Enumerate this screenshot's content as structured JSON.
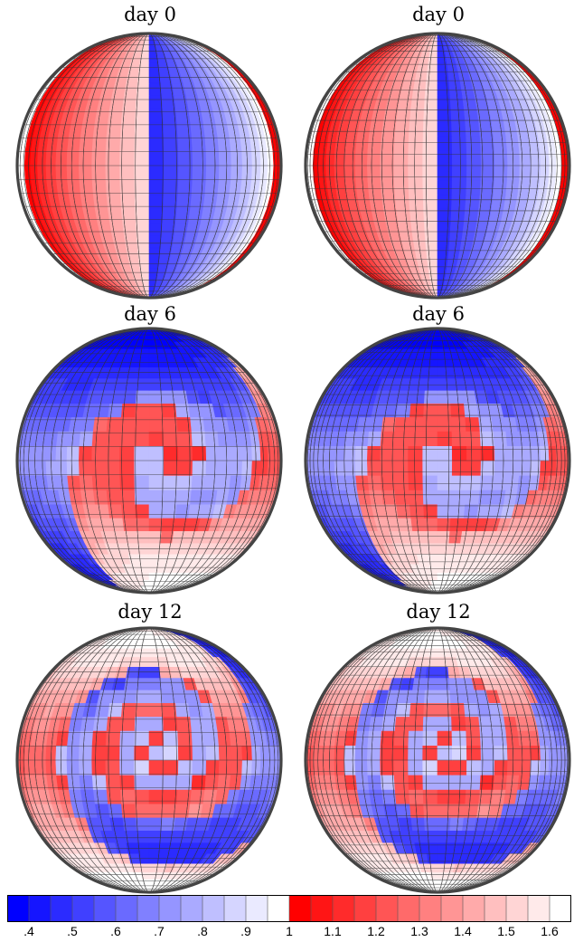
{
  "panels": [
    {
      "title": "day 0",
      "mode": "split",
      "refinement": "uniform"
    },
    {
      "title": "day 0",
      "mode": "split",
      "refinement": "adaptive"
    },
    {
      "title": "day 6",
      "mode": "spiral-1",
      "refinement": "uniform"
    },
    {
      "title": "day 6",
      "mode": "spiral-1",
      "refinement": "adaptive"
    },
    {
      "title": "day 12",
      "mode": "spiral-2",
      "refinement": "uniform"
    },
    {
      "title": "day 12",
      "mode": "spiral-2",
      "refinement": "adaptive"
    }
  ],
  "colorbar": {
    "levels": [
      ".4",
      ".5",
      ".6",
      ".7",
      ".8",
      ".9",
      "1",
      "1.1",
      "1.2",
      "1.3",
      "1.4",
      "1.5",
      "1.6"
    ],
    "min": 0.35,
    "max": 1.65,
    "colors": {
      "low": "#0000ff",
      "mid_low": "#ffffff",
      "mid_high": "#ff0000",
      "high": "#ffffff"
    }
  }
}
